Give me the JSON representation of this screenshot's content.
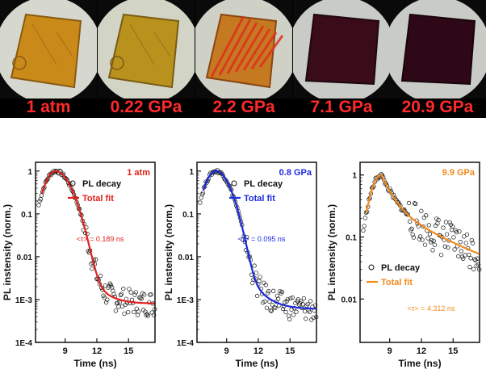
{
  "photos": [
    {
      "label": "1 atm",
      "colors": {
        "bg": "#d6d8cf",
        "crystal": "#c98a1a",
        "edge": "#8a5a10",
        "stripe": ""
      }
    },
    {
      "label": "0.22 GPa",
      "colors": {
        "bg": "#d2d4c6",
        "crystal": "#b9921e",
        "edge": "#7a5c12",
        "stripe": ""
      }
    },
    {
      "label": "2.2 GPa",
      "colors": {
        "bg": "#cfd1c6",
        "crystal": "#c57a22",
        "edge": "#8a4512",
        "stripe": "#e0301e"
      }
    },
    {
      "label": "7.1 GPa",
      "colors": {
        "bg": "#c9cbc6",
        "crystal": "#3a0c1a",
        "edge": "#1e0610",
        "stripe": ""
      }
    },
    {
      "label": "20.9 GPa",
      "colors": {
        "bg": "#c9cbc6",
        "crystal": "#2e0816",
        "edge": "#1a040c",
        "stripe": ""
      }
    }
  ],
  "label_color": "#ff2a2a",
  "chart_data": [
    {
      "type": "scatter",
      "pressure": "1 atm",
      "xlabel": "Time (ns)",
      "ylabel": "PL instensity (norm.)",
      "x_ticks": [
        "9",
        "12",
        "15"
      ],
      "y_ticks": [
        "1E-4",
        "1E-3",
        "0.01",
        "0.1",
        "1"
      ],
      "xlim": [
        6.2,
        17.5
      ],
      "ylim": [
        0.0001,
        1.6
      ],
      "y_scale": "log",
      "legend": [
        "PL decay",
        "Total fit"
      ],
      "legend_position": "top-right",
      "annotation": "<τ> = 0.189 ns",
      "peak_time": 8.1,
      "tail_level": 0.0008,
      "fit_color": "#e0201c",
      "label_color": "#e0201c"
    },
    {
      "type": "scatter",
      "pressure": "0.8 GPa",
      "xlabel": "Time (ns)",
      "ylabel": "PL instensity (norm.)",
      "x_ticks": [
        "9",
        "12",
        "15"
      ],
      "y_ticks": [
        "1E-4",
        "1E-3",
        "0.01",
        "0.1",
        "1"
      ],
      "xlim": [
        6.2,
        17.5
      ],
      "ylim": [
        0.0001,
        1.6
      ],
      "y_scale": "log",
      "legend": [
        "PL decay",
        "Total fit"
      ],
      "legend_position": "top-right",
      "annotation": "<τ> = 0.095 ns",
      "peak_time": 8.0,
      "tail_level": 0.0006,
      "fit_color": "#1c2ae0",
      "label_color": "#1c2ae0"
    },
    {
      "type": "scatter",
      "pressure": "9.9 GPa",
      "xlabel": "Time (ns)",
      "ylabel": "PL instensity (norm.)",
      "x_ticks": [
        "9",
        "12",
        "15"
      ],
      "y_ticks": [
        "0.01",
        "0.1",
        "1"
      ],
      "xlim": [
        6.2,
        17.5
      ],
      "ylim": [
        0.002,
        1.6
      ],
      "y_scale": "log",
      "legend": [
        "PL decay",
        "Total fit"
      ],
      "legend_position": "left",
      "annotation": "<τ> = 4.312 ns",
      "peak_time": 8.2,
      "tail_level": 0.03,
      "fit_color": "#f28a1c",
      "label_color": "#f28a1c"
    }
  ]
}
